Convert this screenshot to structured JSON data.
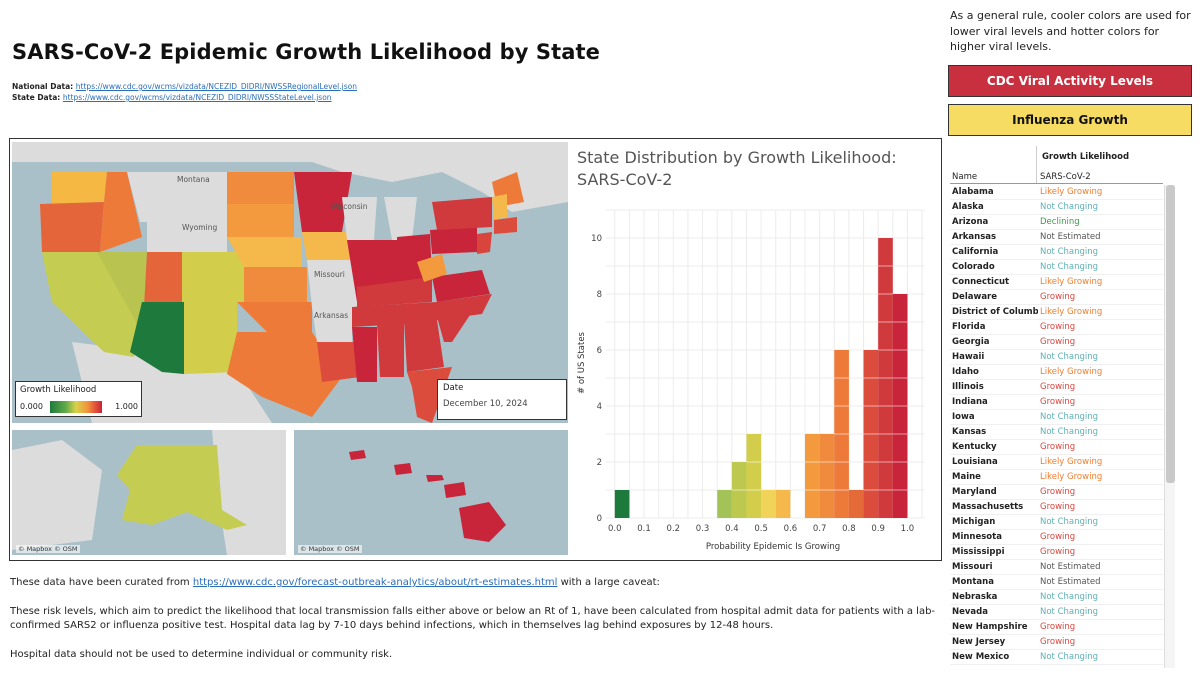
{
  "title": "SARS-CoV-2 Epidemic Growth Likelihood by State",
  "sources": {
    "national_label": "National Data:",
    "national_url": "https://www.cdc.gov/wcms/vizdata/NCEZID_DIDRI/NWSSRegionalLevel.json",
    "state_label": "State Data:",
    "state_url": "https://www.cdc.gov/wcms/vizdata/NCEZID_DIDRI/NWSSStateLevel.json"
  },
  "map": {
    "labels": [
      "Montana",
      "Wyoming",
      "Wisconsin",
      "Missouri",
      "Arkansas"
    ],
    "credit": "© Mapbox © OSM",
    "legend": {
      "title": "Growth Likelihood",
      "min": "0.000",
      "max": "1.000"
    },
    "date": {
      "label": "Date",
      "value": "December 10, 2024"
    }
  },
  "chart_title": "State Distribution by Growth Likelihood: SARS-CoV-2",
  "chart_data": {
    "type": "bar",
    "xlabel": "Probability Epidemic Is Growing",
    "ylabel": "# of US States",
    "x_ticks": [
      "0.0",
      "0.1",
      "0.2",
      "0.3",
      "0.4",
      "0.5",
      "0.6",
      "0.7",
      "0.8",
      "0.9",
      "1.0"
    ],
    "y_ticks": [
      0,
      2,
      4,
      6,
      8,
      10
    ],
    "xlim": [
      -0.03,
      1.06
    ],
    "ylim": [
      0,
      11
    ],
    "bin_width": 0.05,
    "bins": [
      {
        "x": 0.0,
        "value": 1,
        "color": "#1e7a3c"
      },
      {
        "x": 0.35,
        "value": 1,
        "color": "#a3c359"
      },
      {
        "x": 0.4,
        "value": 2,
        "color": "#bdc84f"
      },
      {
        "x": 0.45,
        "value": 3,
        "color": "#d2ce4b"
      },
      {
        "x": 0.5,
        "value": 1,
        "color": "#f2d35a"
      },
      {
        "x": 0.55,
        "value": 1,
        "color": "#f5b84a"
      },
      {
        "x": 0.65,
        "value": 3,
        "color": "#f39a3f"
      },
      {
        "x": 0.7,
        "value": 3,
        "color": "#f08a3c"
      },
      {
        "x": 0.75,
        "value": 6,
        "color": "#ee7a3a"
      },
      {
        "x": 0.8,
        "value": 1,
        "color": "#e56a3a"
      },
      {
        "x": 0.85,
        "value": 6,
        "color": "#dc4c3c"
      },
      {
        "x": 0.9,
        "value": 10,
        "color": "#d03a3c"
      },
      {
        "x": 0.95,
        "value": 8,
        "color": "#c8243a"
      }
    ]
  },
  "info_text": "As a general rule, cooler colors are used for lower viral levels and hotter colors for higher viral levels.",
  "buttons": {
    "cdc": "CDC Viral Activity Levels",
    "flu": "Influenza Growth"
  },
  "table": {
    "header_group": "Growth Likelihood",
    "col_name": "Name",
    "col_value": "SARS-CoV-2",
    "status_colors": {
      "Likely Growing": "#ef7d2d",
      "Not Changing": "#5fb0b4",
      "Declining": "#3a9a4a",
      "Not Estimated": "#555555",
      "Growing": "#d9453d"
    },
    "rows": [
      {
        "name": "Alabama",
        "status": "Likely Growing"
      },
      {
        "name": "Alaska",
        "status": "Not Changing"
      },
      {
        "name": "Arizona",
        "status": "Declining"
      },
      {
        "name": "Arkansas",
        "status": "Not Estimated"
      },
      {
        "name": "California",
        "status": "Not Changing"
      },
      {
        "name": "Colorado",
        "status": "Not Changing"
      },
      {
        "name": "Connecticut",
        "status": "Likely Growing"
      },
      {
        "name": "Delaware",
        "status": "Growing"
      },
      {
        "name": "District of Columbia",
        "status": "Likely Growing"
      },
      {
        "name": "Florida",
        "status": "Growing"
      },
      {
        "name": "Georgia",
        "status": "Growing"
      },
      {
        "name": "Hawaii",
        "status": "Not Changing"
      },
      {
        "name": "Idaho",
        "status": "Likely Growing"
      },
      {
        "name": "Illinois",
        "status": "Growing"
      },
      {
        "name": "Indiana",
        "status": "Growing"
      },
      {
        "name": "Iowa",
        "status": "Not Changing"
      },
      {
        "name": "Kansas",
        "status": "Not Changing"
      },
      {
        "name": "Kentucky",
        "status": "Growing"
      },
      {
        "name": "Louisiana",
        "status": "Likely Growing"
      },
      {
        "name": "Maine",
        "status": "Likely Growing"
      },
      {
        "name": "Maryland",
        "status": "Growing"
      },
      {
        "name": "Massachusetts",
        "status": "Growing"
      },
      {
        "name": "Michigan",
        "status": "Not Changing"
      },
      {
        "name": "Minnesota",
        "status": "Growing"
      },
      {
        "name": "Mississippi",
        "status": "Growing"
      },
      {
        "name": "Missouri",
        "status": "Not Estimated"
      },
      {
        "name": "Montana",
        "status": "Not Estimated"
      },
      {
        "name": "Nebraska",
        "status": "Not Changing"
      },
      {
        "name": "Nevada",
        "status": "Not Changing"
      },
      {
        "name": "New Hampshire",
        "status": "Growing"
      },
      {
        "name": "New Jersey",
        "status": "Growing"
      },
      {
        "name": "New Mexico",
        "status": "Not Changing"
      }
    ]
  },
  "footer": {
    "line1_prefix": "These data have been curated from ",
    "line1_link": "https://www.cdc.gov/forecast-outbreak-analytics/about/rt-estimates.html",
    "line1_suffix": " with a large caveat:",
    "para2": "These risk levels, which aim to predict the likelihood that local transmission falls either above or below an Rt of 1, have been calculated from hospital admit data for patients with a lab-confirmed SARS2 or influenza positive test. Hospital data lag by 7-10 days behind infections, which in themselves lag behind exposures by 12-48 hours.",
    "para3": "Hospital data should not be used to determine individual or community risk."
  }
}
